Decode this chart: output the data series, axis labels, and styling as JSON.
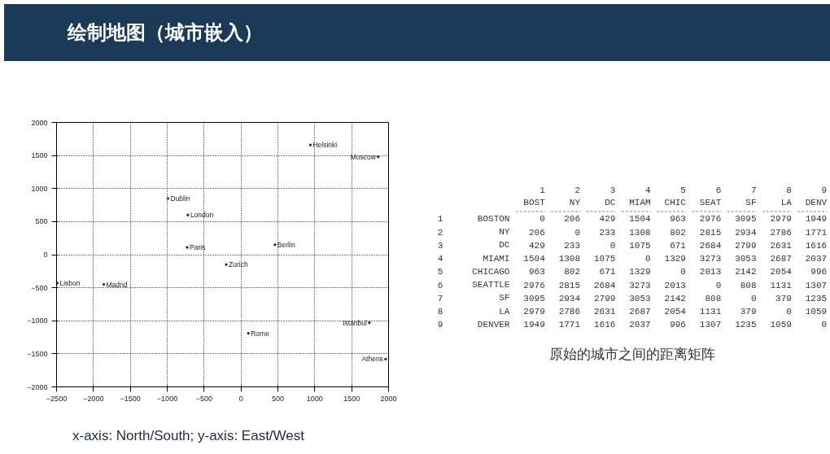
{
  "chart_data": [
    {
      "type": "scatter",
      "title": "绘制地图（城市嵌入）",
      "color": "#333333",
      "marker": "circle",
      "grid": true,
      "x": [
        -990,
        -720,
        -730,
        -200,
        -2490,
        -1860,
        940,
        1860,
        460,
        1740,
        100,
        1960
      ],
      "values": [
        850,
        600,
        110,
        -150,
        -430,
        -450,
        1660,
        1480,
        150,
        -1030,
        -1190,
        -1580
      ],
      "annotations": [
        {
          "text": "Dublin",
          "x": -990,
          "y": 850
        },
        {
          "text": "London",
          "x": -720,
          "y": 600
        },
        {
          "text": "Paris",
          "x": -730,
          "y": 110
        },
        {
          "text": "Zurich",
          "x": -200,
          "y": -150
        },
        {
          "text": "Lisbon",
          "x": -2490,
          "y": -430
        },
        {
          "text": "Madrid",
          "x": -1860,
          "y": -450
        },
        {
          "text": "Helsinki",
          "x": 940,
          "y": 1660
        },
        {
          "text": "Moscow",
          "x": 1860,
          "y": 1480
        },
        {
          "text": "Berlin",
          "x": 460,
          "y": 150
        },
        {
          "text": "Istanbul",
          "x": 1740,
          "y": -1030
        },
        {
          "text": "Rome",
          "x": 100,
          "y": -1190
        },
        {
          "text": "Athens",
          "x": 1960,
          "y": -1580
        },
        "x-axis: North/South; y-axis: East/West"
      ],
      "xlim": [
        -2500,
        2000
      ],
      "ylim": [
        -2000,
        2000
      ],
      "xticks": [
        -2500,
        -2000,
        -1500,
        -1000,
        -500,
        0,
        500,
        1000,
        1500,
        2000
      ],
      "yticks": [
        -2000,
        -1500,
        -1000,
        -500,
        0,
        500,
        1000,
        1500,
        2000
      ]
    },
    {
      "type": "heatmap",
      "color": "#ffffff",
      "data_labels": true,
      "categories": [
        "1\nBOST",
        "2\nNY",
        "3\nDC",
        "4\nMIAM",
        "5\nCHIC",
        "6\nSEAT",
        "7\nSF",
        "8\nLA",
        "9\nDENV"
      ],
      "y_categories": [
        "BOSTON",
        "NY",
        "DC",
        "MIAMI",
        "CHICAGO",
        "SEATTLE",
        "SF",
        "LA",
        "DENVER"
      ],
      "y2_categories": [
        "1",
        "2",
        "3",
        "4",
        "5",
        "6",
        "7",
        "8",
        "9"
      ],
      "cells": [
        [
          0,
          206,
          429,
          1504,
          963,
          2976,
          3095,
          2979,
          1949
        ],
        [
          206,
          0,
          233,
          1308,
          802,
          2815,
          2934,
          2786,
          1771
        ],
        [
          429,
          233,
          0,
          1075,
          671,
          2684,
          2799,
          2631,
          1616
        ],
        [
          1504,
          1308,
          1075,
          0,
          1329,
          3273,
          3053,
          2687,
          2037
        ],
        [
          963,
          802,
          671,
          1329,
          0,
          2013,
          2142,
          2054,
          996
        ],
        [
          2976,
          2815,
          2684,
          3273,
          2013,
          0,
          808,
          1131,
          1307
        ],
        [
          3095,
          2934,
          2799,
          3053,
          2142,
          808,
          0,
          379,
          1235
        ],
        [
          2979,
          2786,
          2631,
          2687,
          2054,
          1131,
          379,
          0,
          1059
        ],
        [
          1949,
          1771,
          1616,
          2037,
          996,
          1307,
          1235,
          1059,
          0
        ]
      ],
      "annotations": [
        "原始的城市之间的距离矩阵"
      ]
    }
  ]
}
